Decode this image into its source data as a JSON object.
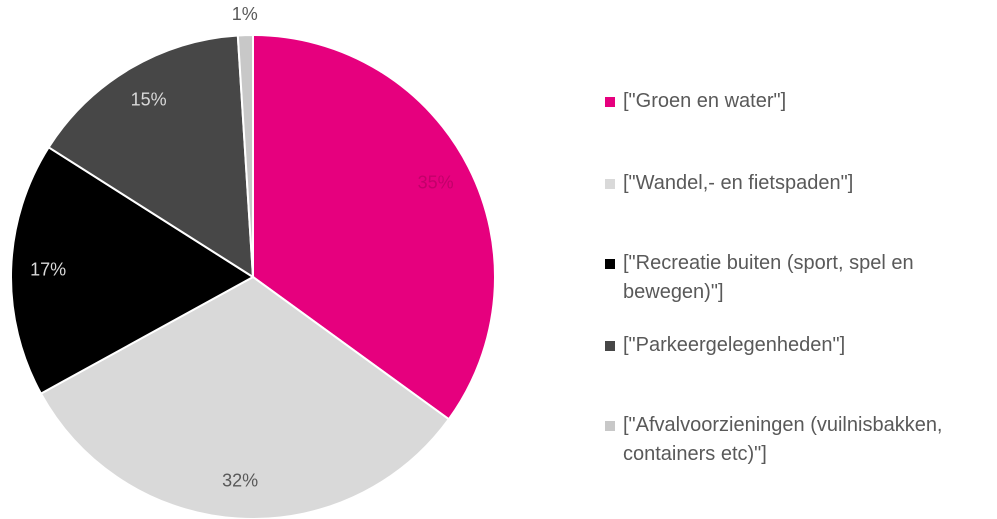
{
  "chart_data": {
    "type": "pie",
    "categories": [
      "[\"Groen en water\"]",
      "[\"Wandel,- en fietspaden\"]",
      "[\"Recreatie buiten (sport, spel en bewegen)\"]",
      "[\"Parkeergelegenheden\"]",
      "[\"Afvalvoorzieningen (vuilnisbakken, containers etc)\"]"
    ],
    "values": [
      35,
      32,
      17,
      15,
      1
    ],
    "value_labels": [
      "35%",
      "32%",
      "17%",
      "15%",
      "1%"
    ],
    "colors": [
      "#e6007e",
      "#d9d9d9",
      "#000000",
      "#474747",
      "#c8c8c8"
    ],
    "legend": "right"
  }
}
